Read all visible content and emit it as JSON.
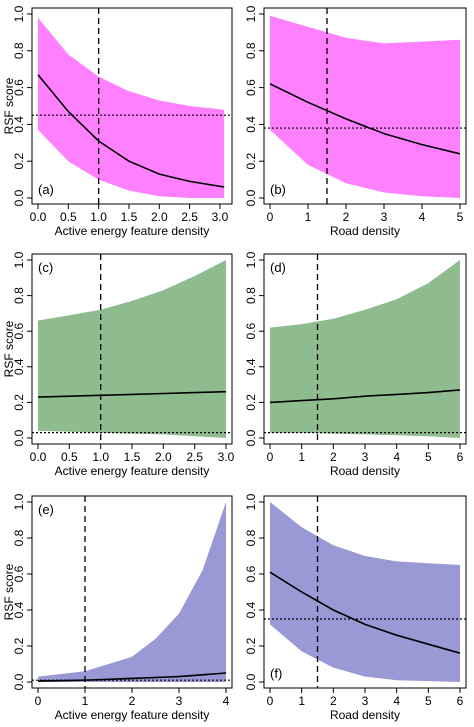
{
  "chart_data": [
    {
      "type": "line",
      "panel_label": "(a)",
      "xlabel": "Active energy feature density",
      "ylabel": "RSF score",
      "xlim": [
        0,
        3.1
      ],
      "ylim": [
        0,
        1.0
      ],
      "xticks": [
        "0.0",
        "0.5",
        "1.0",
        "1.5",
        "2.0",
        "2.5",
        "3.0"
      ],
      "yticks": [
        "0.0",
        "0.2",
        "0.4",
        "0.6",
        "0.8",
        "1.0"
      ],
      "vline": 1.0,
      "hline": 0.45,
      "fill_color": "#ff80ff",
      "series": [
        {
          "x": [
            0,
            0.5,
            1.0,
            1.5,
            2.0,
            2.5,
            3.07
          ],
          "values": [
            0.67,
            0.47,
            0.31,
            0.2,
            0.13,
            0.09,
            0.06
          ]
        }
      ],
      "band_upper": [
        0.98,
        0.78,
        0.66,
        0.58,
        0.53,
        0.5,
        0.48
      ],
      "band_lower": [
        0.37,
        0.2,
        0.1,
        0.04,
        0.01,
        0.0,
        0.0
      ]
    },
    {
      "type": "line",
      "panel_label": "(b)",
      "xlabel": "Road density",
      "ylabel": "",
      "xlim": [
        0,
        5
      ],
      "ylim": [
        0,
        1.0
      ],
      "xticks": [
        "0",
        "1",
        "2",
        "3",
        "4",
        "5"
      ],
      "yticks": [
        "0.0",
        "0.2",
        "0.4",
        "0.6",
        "0.8",
        "1.0"
      ],
      "vline": 1.5,
      "hline": 0.38,
      "fill_color": "#ff80ff",
      "series": [
        {
          "x": [
            0,
            1,
            2,
            3,
            4,
            5
          ],
          "values": [
            0.62,
            0.52,
            0.43,
            0.35,
            0.29,
            0.24
          ]
        }
      ],
      "band_upper": [
        0.99,
        0.93,
        0.87,
        0.84,
        0.85,
        0.86
      ],
      "band_lower": [
        0.37,
        0.18,
        0.08,
        0.03,
        0.01,
        0.0
      ]
    },
    {
      "type": "line",
      "panel_label": "(c)",
      "xlabel": "Active energy feature density",
      "ylabel": "RSF score",
      "xlim": [
        0,
        3.0
      ],
      "ylim": [
        0,
        1.0
      ],
      "xticks": [
        "0.0",
        "0.5",
        "1.0",
        "1.5",
        "2.0",
        "2.5",
        "3.0"
      ],
      "yticks": [
        "0.0",
        "0.2",
        "0.4",
        "0.6",
        "0.8",
        "1.0"
      ],
      "vline": 1.0,
      "hline": 0.03,
      "fill_color": "#8fbc8f",
      "series": [
        {
          "x": [
            0,
            0.5,
            1.0,
            1.5,
            2.0,
            2.5,
            3.0
          ],
          "values": [
            0.23,
            0.235,
            0.24,
            0.245,
            0.25,
            0.255,
            0.26
          ]
        }
      ],
      "band_upper": [
        0.66,
        0.69,
        0.72,
        0.77,
        0.83,
        0.91,
        1.0
      ],
      "band_lower": [
        0.04,
        0.035,
        0.03,
        0.025,
        0.02,
        0.01,
        0.0
      ]
    },
    {
      "type": "line",
      "panel_label": "(d)",
      "xlabel": "Road density",
      "ylabel": "",
      "xlim": [
        0,
        6
      ],
      "ylim": [
        0,
        1.0
      ],
      "xticks": [
        "0",
        "1",
        "2",
        "3",
        "4",
        "5",
        "6"
      ],
      "yticks": [
        "0.0",
        "0.2",
        "0.4",
        "0.6",
        "0.8",
        "1.0"
      ],
      "vline": 1.5,
      "hline": 0.03,
      "fill_color": "#8fbc8f",
      "series": [
        {
          "x": [
            0,
            1,
            2,
            3,
            4,
            5,
            6
          ],
          "values": [
            0.2,
            0.21,
            0.22,
            0.235,
            0.245,
            0.255,
            0.27
          ]
        }
      ],
      "band_upper": [
        0.62,
        0.64,
        0.67,
        0.72,
        0.78,
        0.87,
        1.0
      ],
      "band_lower": [
        0.03,
        0.03,
        0.025,
        0.02,
        0.015,
        0.01,
        0.0
      ]
    },
    {
      "type": "line",
      "panel_label": "(e)",
      "xlabel": "Active energy feature density",
      "ylabel": "RSF score",
      "xlim": [
        0,
        4
      ],
      "ylim": [
        0,
        1.0
      ],
      "xticks": [
        "0",
        "1",
        "2",
        "3",
        "4"
      ],
      "yticks": [
        "0.0",
        "0.2",
        "0.4",
        "0.6",
        "0.8",
        "1.0"
      ],
      "vline": 1.0,
      "hline": 0.01,
      "fill_color": "#9999d6",
      "series": [
        {
          "x": [
            0,
            1,
            2,
            2.5,
            3,
            3.5,
            4
          ],
          "values": [
            0.005,
            0.01,
            0.02,
            0.025,
            0.03,
            0.04,
            0.05
          ]
        }
      ],
      "band_upper": [
        0.03,
        0.06,
        0.14,
        0.24,
        0.38,
        0.62,
        1.0
      ],
      "band_lower": [
        0.0,
        0.0,
        0.0,
        0.0,
        0.0,
        0.0,
        0.0
      ]
    },
    {
      "type": "line",
      "panel_label": "(f)",
      "xlabel": "Road density",
      "ylabel": "",
      "xlim": [
        0,
        6
      ],
      "ylim": [
        0,
        1.0
      ],
      "xticks": [
        "0",
        "1",
        "2",
        "3",
        "4",
        "5",
        "6"
      ],
      "yticks": [
        "0.0",
        "0.2",
        "0.4",
        "0.6",
        "0.8",
        "1.0"
      ],
      "vline": 1.5,
      "hline": 0.35,
      "fill_color": "#9999d6",
      "series": [
        {
          "x": [
            0,
            1,
            2,
            3,
            4,
            5,
            6
          ],
          "values": [
            0.61,
            0.5,
            0.4,
            0.32,
            0.26,
            0.21,
            0.16
          ]
        }
      ],
      "band_upper": [
        1.0,
        0.86,
        0.76,
        0.7,
        0.67,
        0.66,
        0.65
      ],
      "band_lower": [
        0.32,
        0.17,
        0.08,
        0.03,
        0.01,
        0.005,
        0.0
      ]
    }
  ]
}
